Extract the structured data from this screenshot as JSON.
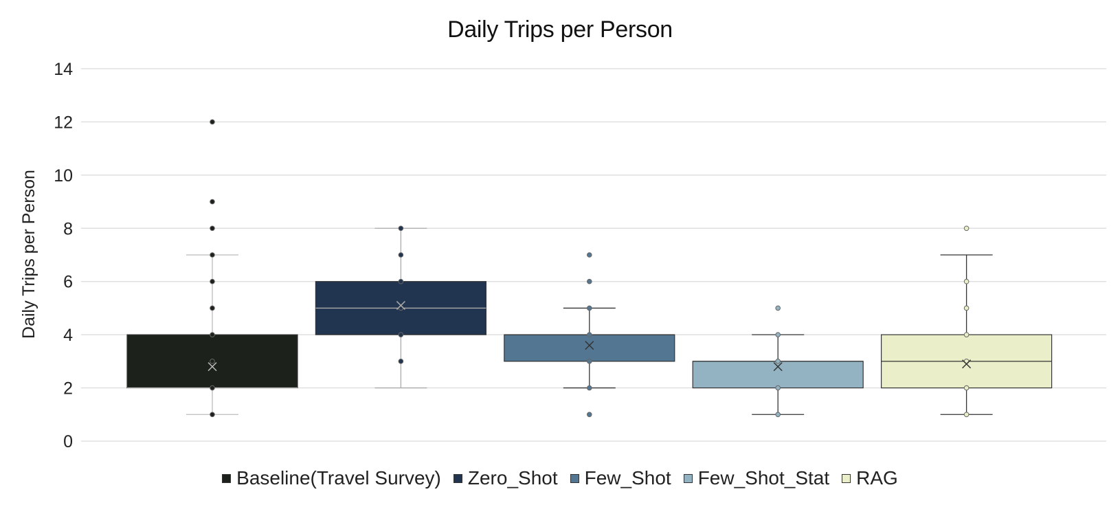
{
  "chart_data": {
    "type": "box",
    "title": "Daily Trips per Person",
    "ylabel": "Daily Trips per Person",
    "xlabel": "",
    "ylim": [
      0,
      14
    ],
    "yticks": [
      0,
      2,
      4,
      6,
      8,
      10,
      12,
      14
    ],
    "grid": true,
    "legend_position": "bottom",
    "series": [
      {
        "name": "Baseline(Travel Survey)",
        "color": "#1c211b",
        "line_color": "#bbbbbb",
        "point_color": "#1c211b",
        "min": 1,
        "q1": 2,
        "median": 2,
        "q3": 4,
        "max": 7,
        "mean": 2.8,
        "points": [
          1,
          2,
          3,
          4,
          5,
          6,
          7,
          8,
          9,
          12
        ]
      },
      {
        "name": "Zero_Shot",
        "color": "#223550",
        "line_color": "#aaaaaa",
        "point_color": "#223550",
        "min": 2,
        "q1": 4,
        "median": 5,
        "q3": 6,
        "max": 8,
        "mean": 5.1,
        "points": [
          3,
          4,
          5,
          6,
          7,
          8
        ]
      },
      {
        "name": "Few_Shot",
        "color": "#537792",
        "line_color": "#333333",
        "point_color": "#537792",
        "min": 2,
        "q1": 3,
        "median": 4,
        "q3": 4,
        "max": 5,
        "mean": 3.6,
        "points": [
          1,
          2,
          3,
          4,
          5,
          6,
          7
        ]
      },
      {
        "name": "Few_Shot_Stat",
        "color": "#93b3c2",
        "line_color": "#333333",
        "point_color": "#93b3c2",
        "min": 1,
        "q1": 2,
        "median": 3,
        "q3": 3,
        "max": 4,
        "mean": 2.8,
        "points": [
          1,
          2,
          3,
          4,
          5
        ]
      },
      {
        "name": "RAG",
        "color": "#ebefc9",
        "line_color": "#333333",
        "point_color": "#ebefc9",
        "min": 1,
        "q1": 2,
        "median": 3,
        "q3": 4,
        "max": 7,
        "mean": 2.9,
        "points": [
          1,
          2,
          3,
          4,
          5,
          6,
          8
        ]
      }
    ]
  }
}
